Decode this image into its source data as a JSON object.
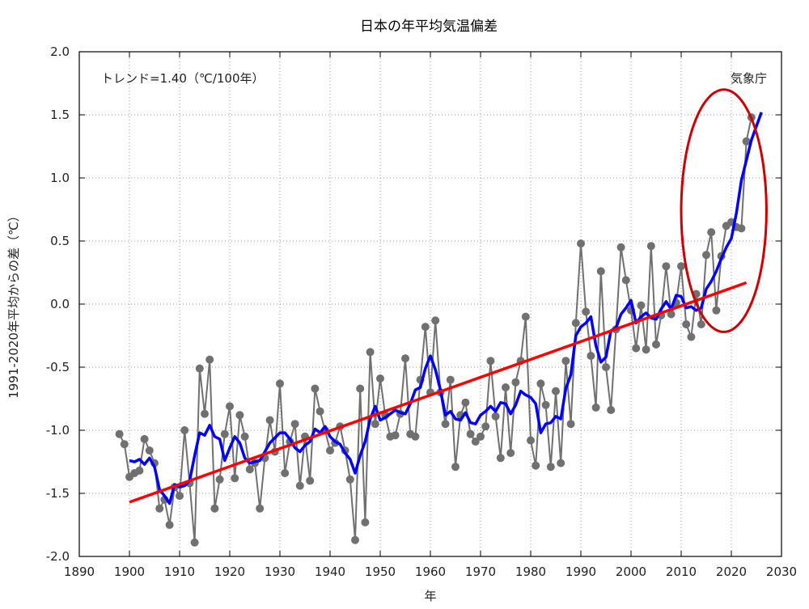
{
  "chart_data": {
    "type": "line",
    "title": "日本の年平均気温偏差",
    "xlabel": "年",
    "ylabel": "1991-2020年平均からの差（℃）",
    "xlim": [
      1890,
      2030
    ],
    "ylim": [
      -2.0,
      2.0
    ],
    "x_ticks": [
      1890,
      1900,
      1910,
      1920,
      1930,
      1940,
      1950,
      1960,
      1970,
      1980,
      1990,
      2000,
      2010,
      2020,
      2030
    ],
    "y_ticks": [
      2.0,
      1.5,
      1.0,
      0.5,
      0.0,
      -0.5,
      -1.0,
      -1.5,
      -2.0
    ],
    "y_tick_labels": [
      "2.0",
      "1.5",
      "1.0",
      "0.5",
      "0.0",
      "-0.5",
      "-1.0",
      "-1.5",
      "-2.0"
    ],
    "grid": true,
    "annotation": "トレンド=1.40（℃/100年）",
    "source_label": "気象庁",
    "colors": {
      "annual": "#707070",
      "moving_average": "#0000ff",
      "trend": "#ff0000",
      "highlight_ellipse": "#cc0000"
    },
    "series": [
      {
        "role": "annual",
        "x": [
          1898,
          1899,
          1900,
          1901,
          1902,
          1903,
          1904,
          1905,
          1906,
          1907,
          1908,
          1909,
          1910,
          1911,
          1912,
          1913,
          1914,
          1915,
          1916,
          1917,
          1918,
          1919,
          1920,
          1921,
          1922,
          1923,
          1924,
          1925,
          1926,
          1927,
          1928,
          1929,
          1930,
          1931,
          1932,
          1933,
          1934,
          1935,
          1936,
          1937,
          1938,
          1939,
          1940,
          1941,
          1942,
          1943,
          1944,
          1945,
          1946,
          1947,
          1948,
          1949,
          1950,
          1951,
          1952,
          1953,
          1954,
          1955,
          1956,
          1957,
          1958,
          1959,
          1960,
          1961,
          1962,
          1963,
          1964,
          1965,
          1966,
          1967,
          1968,
          1969,
          1970,
          1971,
          1972,
          1973,
          1974,
          1975,
          1976,
          1977,
          1978,
          1979,
          1980,
          1981,
          1982,
          1983,
          1984,
          1985,
          1986,
          1987,
          1988,
          1989,
          1990,
          1991,
          1992,
          1993,
          1994,
          1995,
          1996,
          1997,
          1998,
          1999,
          2000,
          2001,
          2002,
          2003,
          2004,
          2005,
          2006,
          2007,
          2008,
          2009,
          2010,
          2011,
          2012,
          2013,
          2014,
          2015,
          2016,
          2017,
          2018,
          2019,
          2020,
          2021,
          2022,
          2023,
          2024
        ],
        "values": [
          -1.03,
          -1.11,
          -1.37,
          -1.34,
          -1.32,
          -1.07,
          -1.16,
          -1.26,
          -1.62,
          -1.55,
          -1.75,
          -1.45,
          -1.52,
          -1.0,
          -1.42,
          -1.89,
          -0.51,
          -0.87,
          -0.44,
          -1.62,
          -1.39,
          -1.03,
          -0.81,
          -1.38,
          -0.88,
          -1.05,
          -1.31,
          -1.26,
          -1.62,
          -1.22,
          -0.92,
          -1.17,
          -0.63,
          -1.34,
          -1.09,
          -0.95,
          -1.44,
          -1.05,
          -1.4,
          -0.67,
          -0.85,
          -1.0,
          -1.16,
          -1.1,
          -0.97,
          -1.16,
          -1.39,
          -1.87,
          -0.67,
          -1.73,
          -0.38,
          -0.95,
          -0.59,
          -0.88,
          -1.05,
          -1.04,
          -0.87,
          -0.43,
          -1.03,
          -1.05,
          -0.6,
          -0.18,
          -0.7,
          -0.13,
          -0.7,
          -0.95,
          -0.6,
          -1.29,
          -0.88,
          -0.78,
          -1.03,
          -1.09,
          -1.05,
          -0.97,
          -0.45,
          -0.89,
          -1.22,
          -0.66,
          -1.18,
          -0.62,
          -0.45,
          -0.1,
          -1.08,
          -1.28,
          -0.63,
          -0.8,
          -1.29,
          -0.69,
          -1.26,
          -0.45,
          -0.95,
          -0.15,
          0.48,
          -0.06,
          -0.41,
          -0.82,
          0.26,
          -0.5,
          -0.84,
          -0.2,
          0.45,
          0.19,
          -0.05,
          -0.35,
          -0.01,
          -0.36,
          0.46,
          -0.32,
          -0.09,
          0.3,
          -0.08,
          0.01,
          0.3,
          -0.16,
          -0.26,
          0.08,
          -0.16,
          0.39,
          0.57,
          -0.05,
          0.38,
          0.62,
          0.65,
          0.61,
          0.6,
          1.29,
          1.48
        ]
      },
      {
        "role": "moving_average",
        "x": [
          1900,
          1901,
          1902,
          1903,
          1904,
          1905,
          1906,
          1907,
          1908,
          1909,
          1910,
          1911,
          1912,
          1913,
          1914,
          1915,
          1916,
          1917,
          1918,
          1919,
          1920,
          1921,
          1922,
          1923,
          1924,
          1925,
          1926,
          1927,
          1928,
          1929,
          1930,
          1931,
          1932,
          1933,
          1934,
          1935,
          1936,
          1937,
          1938,
          1939,
          1940,
          1941,
          1942,
          1943,
          1944,
          1945,
          1946,
          1947,
          1948,
          1949,
          1950,
          1951,
          1952,
          1953,
          1954,
          1955,
          1956,
          1957,
          1958,
          1959,
          1960,
          1961,
          1962,
          1963,
          1964,
          1965,
          1966,
          1967,
          1968,
          1969,
          1970,
          1971,
          1972,
          1973,
          1974,
          1975,
          1976,
          1977,
          1978,
          1979,
          1980,
          1981,
          1982,
          1983,
          1984,
          1985,
          1986,
          1987,
          1988,
          1989,
          1990,
          1991,
          1992,
          1993,
          1994,
          1995,
          1996,
          1997,
          1998,
          1999,
          2000,
          2001,
          2002,
          2003,
          2004,
          2005,
          2006,
          2007,
          2008,
          2009,
          2010,
          2011,
          2012,
          2013,
          2014,
          2015,
          2016,
          2017,
          2018,
          2019,
          2020,
          2021,
          2022,
          2024,
          2026
        ],
        "values": [
          -1.24,
          -1.25,
          -1.23,
          -1.27,
          -1.22,
          -1.29,
          -1.47,
          -1.52,
          -1.58,
          -1.43,
          -1.45,
          -1.44,
          -1.4,
          -1.2,
          -1.02,
          -1.04,
          -0.96,
          -1.05,
          -1.07,
          -1.24,
          -1.14,
          -1.05,
          -1.1,
          -1.22,
          -1.26,
          -1.25,
          -1.24,
          -1.17,
          -1.1,
          -1.06,
          -1.02,
          -1.02,
          -1.07,
          -1.14,
          -1.17,
          -1.12,
          -1.09,
          -0.99,
          -1.02,
          -0.97,
          -1.05,
          -1.09,
          -1.11,
          -1.18,
          -1.23,
          -1.34,
          -1.2,
          -1.09,
          -0.91,
          -0.81,
          -0.92,
          -0.9,
          -0.87,
          -0.84,
          -0.86,
          -0.87,
          -0.79,
          -0.68,
          -0.66,
          -0.51,
          -0.41,
          -0.52,
          -0.68,
          -0.88,
          -0.85,
          -0.91,
          -0.92,
          -0.86,
          -0.94,
          -0.95,
          -0.88,
          -0.85,
          -0.81,
          -0.85,
          -0.78,
          -0.79,
          -0.87,
          -0.8,
          -0.69,
          -0.72,
          -0.74,
          -0.79,
          -1.02,
          -0.95,
          -0.94,
          -0.89,
          -0.91,
          -0.67,
          -0.56,
          -0.25,
          -0.18,
          -0.15,
          -0.1,
          -0.33,
          -0.46,
          -0.42,
          -0.21,
          -0.19,
          -0.08,
          -0.03,
          0.03,
          -0.15,
          -0.1,
          -0.07,
          -0.11,
          -0.12,
          -0.04,
          0.02,
          -0.04,
          0.07,
          0.06,
          -0.03,
          -0.02,
          -0.05,
          -0.03,
          0.12,
          0.18,
          0.26,
          0.36,
          0.45,
          0.52,
          0.72,
          0.98,
          1.3,
          1.52
        ]
      },
      {
        "role": "trend",
        "x": [
          1900,
          2023
        ],
        "values": [
          -1.57,
          0.17
        ]
      }
    ],
    "highlight_region": {
      "shape": "ellipse",
      "x_range": [
        2010,
        2027
      ],
      "y_range": [
        -0.22,
        1.7
      ]
    }
  }
}
